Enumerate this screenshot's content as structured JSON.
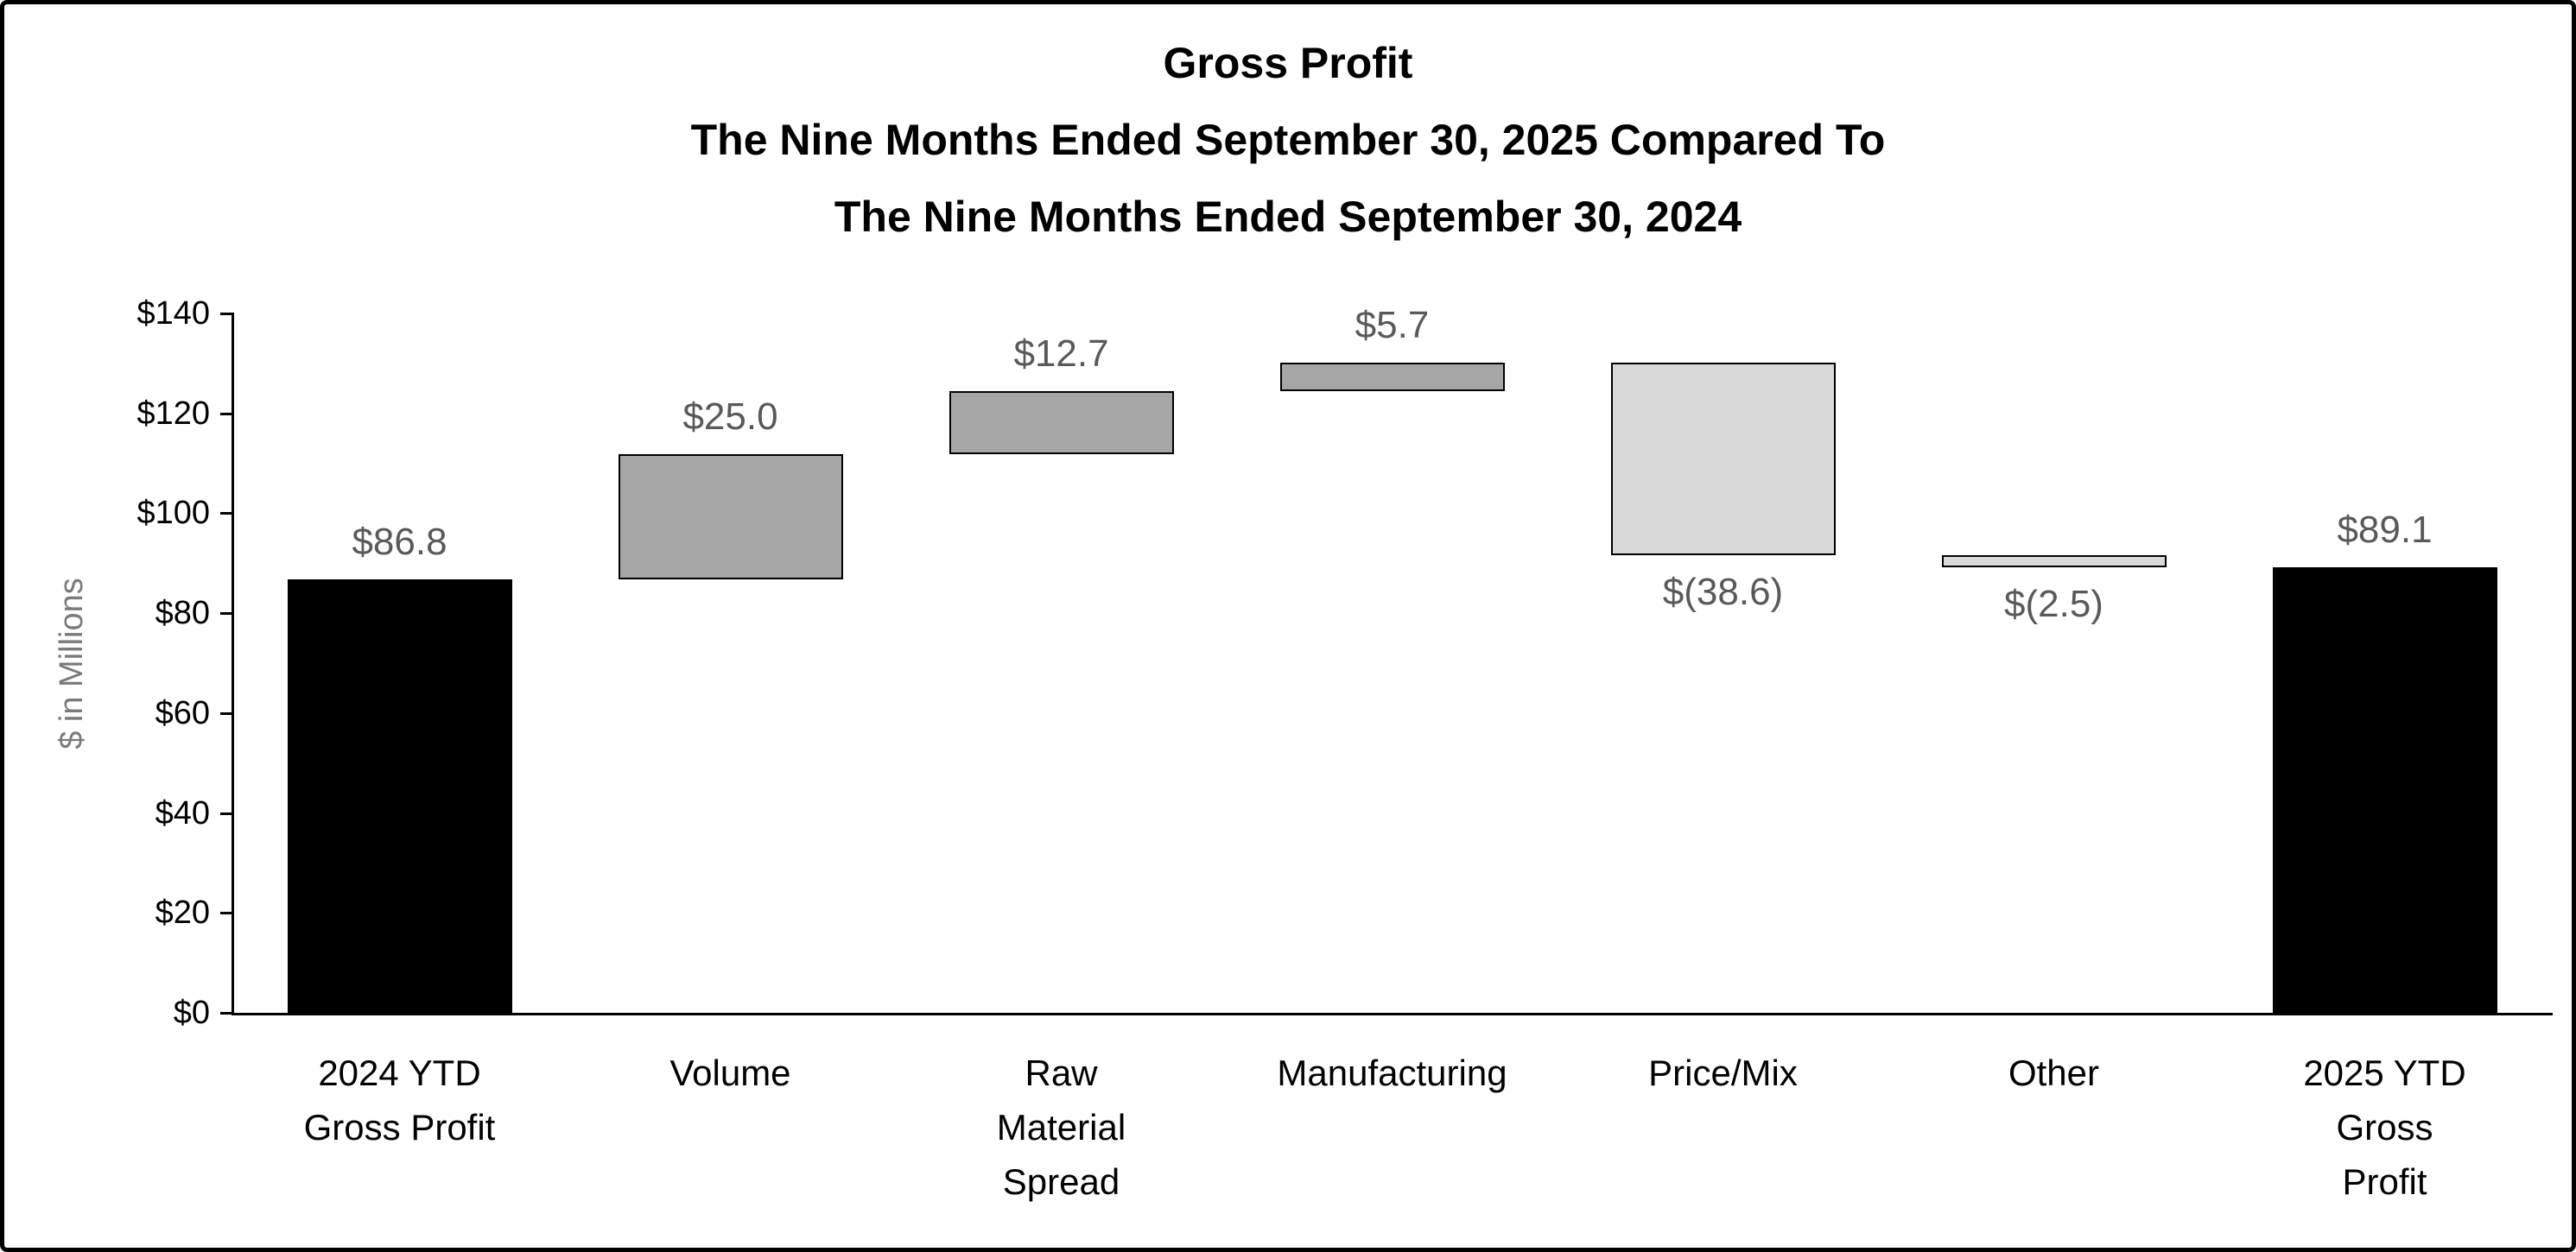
{
  "chart_data": {
    "type": "bar",
    "subtype": "waterfall",
    "title": "Gross Profit",
    "subtitle_lines": [
      "The Nine Months Ended September 30, 2025 Compared To",
      "The Nine Months Ended September 30, 2024"
    ],
    "ylabel": "$ in Millions",
    "xlabel": "",
    "ylim": [
      0,
      140
    ],
    "grid": false,
    "legend_position": "none",
    "yticks": [
      {
        "value": 0,
        "label": "$0"
      },
      {
        "value": 20,
        "label": "$20"
      },
      {
        "value": 40,
        "label": "$40"
      },
      {
        "value": 60,
        "label": "$60"
      },
      {
        "value": 80,
        "label": "$80"
      },
      {
        "value": 100,
        "label": "$100"
      },
      {
        "value": 120,
        "label": "$120"
      },
      {
        "value": 140,
        "label": "$140"
      }
    ],
    "categories": [
      "2024 YTD Gross Profit",
      "Volume",
      "Raw Material Spread",
      "Manufacturing",
      "Price/Mix",
      "Other",
      "2025 YTD Gross Profit"
    ],
    "bars": [
      {
        "category_lines": [
          "2024 YTD",
          "Gross Profit"
        ],
        "value": 86.8,
        "value_label": "$86.8",
        "start": 0,
        "end": 86.8,
        "role": "total",
        "value_label_position": "above"
      },
      {
        "category_lines": [
          "Volume"
        ],
        "value": 25.0,
        "value_label": "$25.0",
        "start": 86.8,
        "end": 111.8,
        "role": "increase",
        "value_label_position": "above"
      },
      {
        "category_lines": [
          "Raw",
          "Material",
          "Spread"
        ],
        "value": 12.7,
        "value_label": "$12.7",
        "start": 111.8,
        "end": 124.5,
        "role": "increase",
        "value_label_position": "above"
      },
      {
        "category_lines": [
          "Manufacturing"
        ],
        "value": 5.7,
        "value_label": "$5.7",
        "start": 124.5,
        "end": 130.2,
        "role": "increase",
        "value_label_position": "above"
      },
      {
        "category_lines": [
          "Price/Mix"
        ],
        "value": -38.6,
        "value_label": "$(38.6)",
        "start": 130.2,
        "end": 91.6,
        "role": "decrease",
        "value_label_position": "below"
      },
      {
        "category_lines": [
          "Other"
        ],
        "value": -2.5,
        "value_label": "$(2.5)",
        "start": 91.6,
        "end": 89.1,
        "role": "decrease",
        "value_label_position": "below"
      },
      {
        "category_lines": [
          "2025 YTD",
          "Gross",
          "Profit"
        ],
        "value": 89.1,
        "value_label": "$89.1",
        "start": 0,
        "end": 89.1,
        "role": "total",
        "value_label_position": "above"
      }
    ],
    "colors": {
      "total_fill": "#000000",
      "increase_fill": "#a6a6a6",
      "decrease_fill": "#d9d9d9",
      "bar_border": "#000000",
      "value_label": "#595959",
      "axis": "#000000",
      "tick_label": "#000000",
      "ylabel": "#7a7a7a"
    }
  }
}
